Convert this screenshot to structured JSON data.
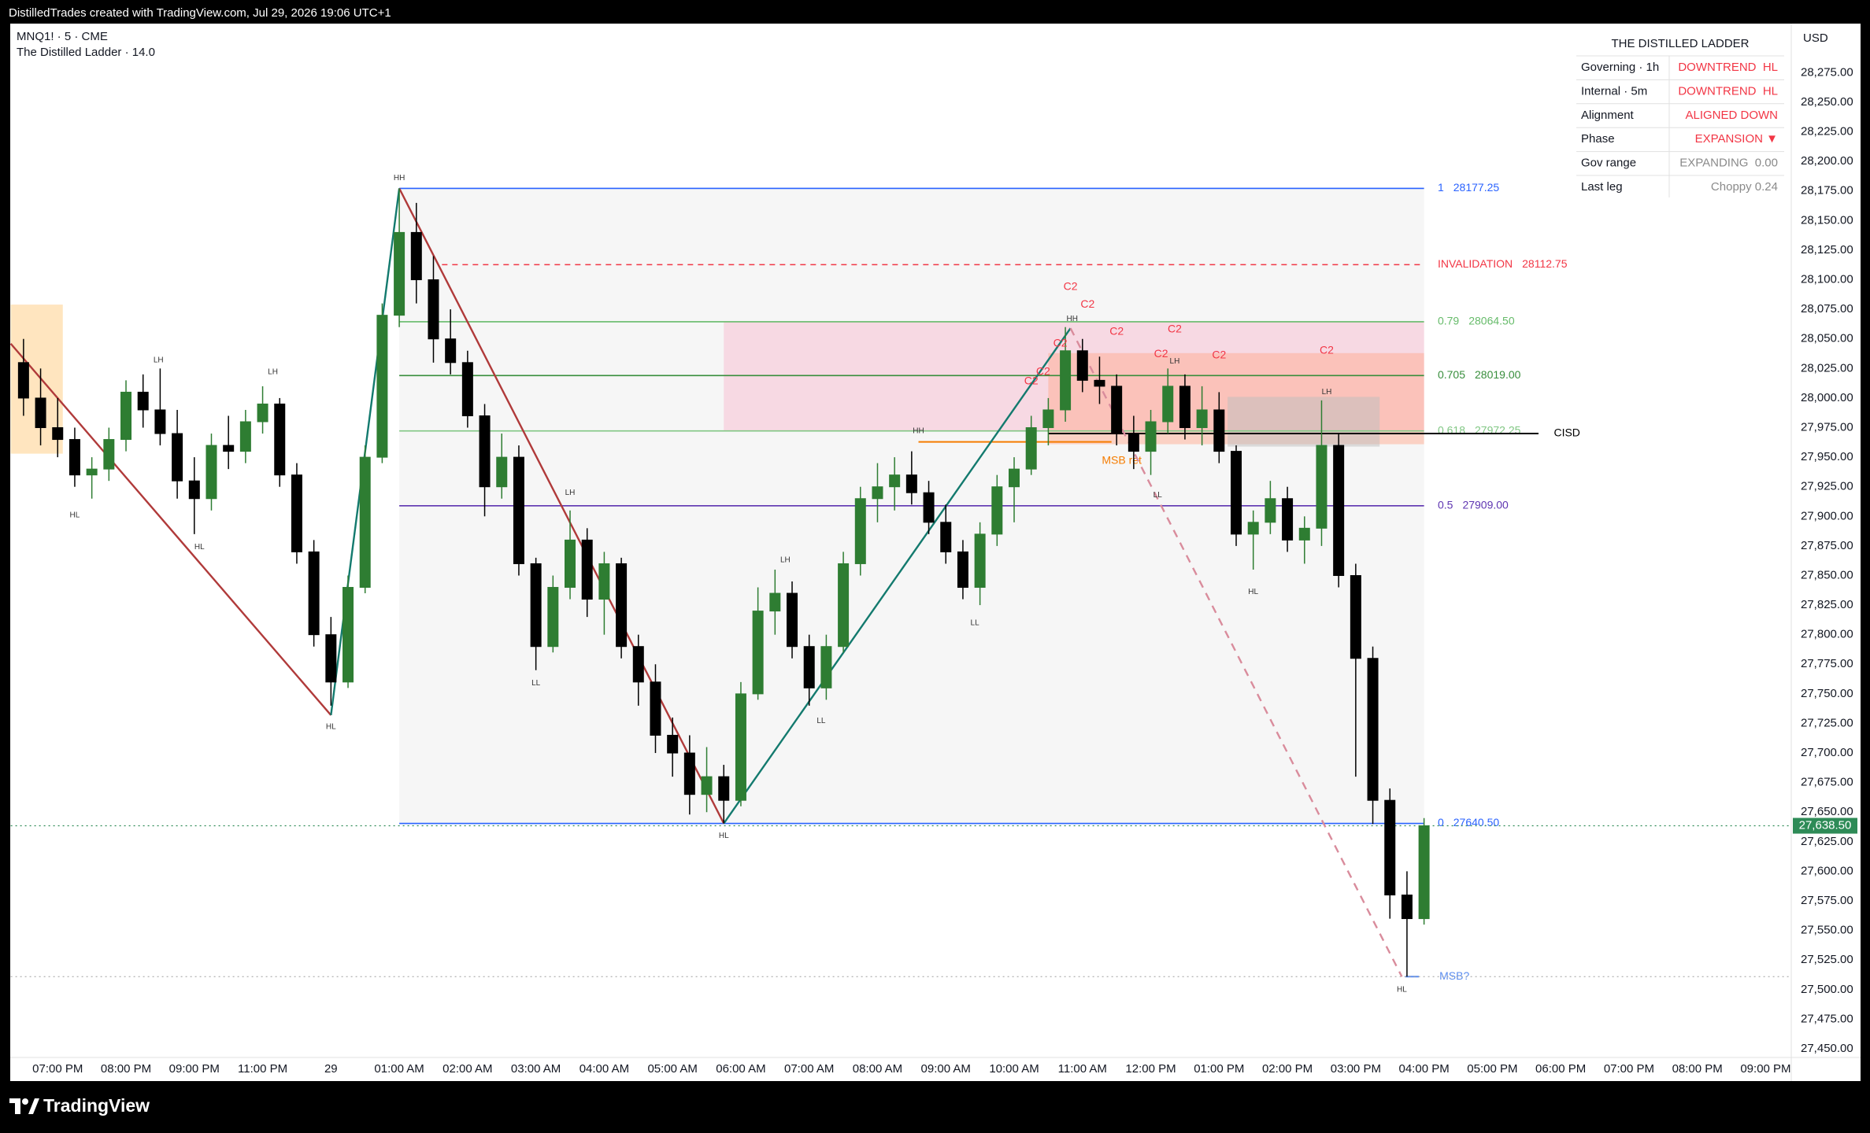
{
  "header": {
    "credit": "DistilledTrades created with TradingView.com, Jul 29, 2026 19:06 UTC+1",
    "symbol": "MNQ1! · 5 · CME",
    "indicator": "The Distilled Ladder · 14.0",
    "currency": "USD",
    "brand": "TradingView"
  },
  "table": {
    "title": "THE DISTILLED LADDER",
    "rows": [
      [
        "Governing · 1h",
        "DOWNTREND  HL"
      ],
      [
        "Internal · 5m",
        "DOWNTREND  HL"
      ],
      [
        "Alignment",
        "ALIGNED DOWN"
      ],
      [
        "Phase",
        "EXPANSION ▼"
      ],
      [
        "Gov range",
        "EXPANDING  0.00"
      ],
      [
        "Last leg",
        "Choppy 0.24"
      ]
    ],
    "value_colors": [
      "#f23645",
      "#f23645",
      "#f23645",
      "#f23645",
      "#8a8a8a",
      "#8a8a8a"
    ]
  },
  "chart_data": {
    "type": "candlestick",
    "up_color": "#2e7d32",
    "down_color": "#000000",
    "xlim": [
      1.25,
      105.5
    ],
    "ylim": [
      27443,
      28316.5
    ],
    "grid": false,
    "xticks": [
      {
        "value": 4,
        "label": "07:00 PM"
      },
      {
        "value": 8,
        "label": "08:00 PM"
      },
      {
        "value": 12,
        "label": "09:00 PM"
      },
      {
        "value": 16,
        "label": "11:00 PM"
      },
      {
        "value": 20,
        "label": "29"
      },
      {
        "value": 24,
        "label": "01:00 AM"
      },
      {
        "value": 28,
        "label": "02:00 AM"
      },
      {
        "value": 32,
        "label": "03:00 AM"
      },
      {
        "value": 36,
        "label": "04:00 AM"
      },
      {
        "value": 40,
        "label": "05:00 AM"
      },
      {
        "value": 44,
        "label": "06:00 AM"
      },
      {
        "value": 48,
        "label": "07:00 AM"
      },
      {
        "value": 52,
        "label": "08:00 AM"
      },
      {
        "value": 56,
        "label": "09:00 AM"
      },
      {
        "value": 60,
        "label": "10:00 AM"
      },
      {
        "value": 64,
        "label": "11:00 AM"
      },
      {
        "value": 68,
        "label": "12:00 PM"
      },
      {
        "value": 72,
        "label": "01:00 PM"
      },
      {
        "value": 76,
        "label": "02:00 PM"
      },
      {
        "value": 80,
        "label": "03:00 PM"
      },
      {
        "value": 84,
        "label": "04:00 PM"
      },
      {
        "value": 88,
        "label": "05:00 PM"
      },
      {
        "value": 92,
        "label": "06:00 PM"
      },
      {
        "value": 96,
        "label": "07:00 PM"
      },
      {
        "value": 100,
        "label": "08:00 PM"
      },
      {
        "value": 104,
        "label": "09:00 PM"
      }
    ],
    "yticks": [
      {
        "value": 27450,
        "label": "27,450.00"
      },
      {
        "value": 27475,
        "label": "27,475.00"
      },
      {
        "value": 27500,
        "label": "27,500.00"
      },
      {
        "value": 27525,
        "label": "27,525.00"
      },
      {
        "value": 27550,
        "label": "27,550.00"
      },
      {
        "value": 27575,
        "label": "27,575.00"
      },
      {
        "value": 27600,
        "label": "27,600.00"
      },
      {
        "value": 27625,
        "label": "27,625.00"
      },
      {
        "value": 27650,
        "label": "27,650.00"
      },
      {
        "value": 27675,
        "label": "27,675.00"
      },
      {
        "value": 27700,
        "label": "27,700.00"
      },
      {
        "value": 27725,
        "label": "27,725.00"
      },
      {
        "value": 27750,
        "label": "27,750.00"
      },
      {
        "value": 27775,
        "label": "27,775.00"
      },
      {
        "value": 27800,
        "label": "27,800.00"
      },
      {
        "value": 27825,
        "label": "27,825.00"
      },
      {
        "value": 27850,
        "label": "27,850.00"
      },
      {
        "value": 27875,
        "label": "27,875.00"
      },
      {
        "value": 27900,
        "label": "27,900.00"
      },
      {
        "value": 27925,
        "label": "27,925.00"
      },
      {
        "value": 27950,
        "label": "27,950.00"
      },
      {
        "value": 27975,
        "label": "27,975.00"
      },
      {
        "value": 28000,
        "label": "28,000.00"
      },
      {
        "value": 28025,
        "label": "28,025.00"
      },
      {
        "value": 28050,
        "label": "28,050.00"
      },
      {
        "value": 28075,
        "label": "28,075.00"
      },
      {
        "value": 28100,
        "label": "28,100.00"
      },
      {
        "value": 28125,
        "label": "28,125.00"
      },
      {
        "value": 28150,
        "label": "28,150.00"
      },
      {
        "value": 28175,
        "label": "28,175.00"
      },
      {
        "value": 28200,
        "label": "28,200.00"
      },
      {
        "value": 28225,
        "label": "28,225.00"
      },
      {
        "value": 28250,
        "label": "28,250.00"
      },
      {
        "value": 28275,
        "label": "28,275.00"
      }
    ],
    "x": [
      2,
      3,
      4,
      5,
      6,
      7,
      8,
      9,
      10,
      11,
      12,
      13,
      14,
      15,
      16,
      17,
      18,
      19,
      20,
      21,
      22,
      23,
      24,
      25,
      26,
      27,
      28,
      29,
      30,
      31,
      32,
      33,
      34,
      35,
      36,
      37,
      38,
      39,
      40,
      41,
      42,
      43,
      44,
      45,
      46,
      47,
      48,
      49,
      50,
      51,
      52,
      53,
      54,
      55,
      56,
      57,
      58,
      59,
      60,
      61,
      62,
      63,
      64,
      65,
      66,
      67,
      68,
      69,
      70,
      71,
      72,
      73,
      74,
      75,
      76,
      77,
      78,
      79,
      80,
      81,
      82,
      83,
      84
    ],
    "open": [
      28030,
      28000,
      27975,
      27965,
      27935,
      27940,
      27965,
      28005,
      27990,
      27970,
      27930,
      27915,
      27960,
      27955,
      27980,
      27995,
      27935,
      27870,
      27800,
      27760,
      27840,
      27950,
      28070,
      28140,
      28100,
      28050,
      28030,
      27985,
      27925,
      27950,
      27860,
      27790,
      27840,
      27880,
      27830,
      27860,
      27790,
      27760,
      27715,
      27700,
      27665,
      27680,
      27660,
      27750,
      27820,
      27835,
      27790,
      27755,
      27790,
      27860,
      27915,
      27925,
      27935,
      27920,
      27895,
      27870,
      27840,
      27885,
      27925,
      27940,
      27975,
      27990,
      28040,
      28015,
      28010,
      27970,
      27955,
      27980,
      28010,
      27975,
      27990,
      27955,
      27885,
      27895,
      27915,
      27880,
      27890,
      27960,
      27850,
      27780,
      27660,
      27580,
      27560
    ],
    "high": [
      28050,
      28025,
      28000,
      27975,
      27950,
      27975,
      28015,
      28020,
      28025,
      27990,
      27950,
      27970,
      27985,
      27990,
      28010,
      28000,
      27945,
      27880,
      27815,
      27850,
      27960,
      28080,
      28177.25,
      28165,
      28120,
      28075,
      28040,
      27995,
      27970,
      27960,
      27865,
      27850,
      27905,
      27890,
      27870,
      27865,
      27800,
      27775,
      27730,
      27715,
      27705,
      27690,
      27760,
      27840,
      27855,
      27845,
      27800,
      27800,
      27870,
      27925,
      27945,
      27950,
      27955,
      27930,
      27910,
      27880,
      27895,
      27935,
      27950,
      27985,
      28000,
      28060,
      28050,
      28035,
      28020,
      27985,
      27990,
      28025,
      28020,
      28010,
      28005,
      27960,
      27905,
      27930,
      27925,
      27900,
      27998,
      27970,
      27860,
      27790,
      27670,
      27600,
      27645
    ],
    "low": [
      27985,
      27960,
      27950,
      27925,
      27915,
      27930,
      27955,
      27975,
      27960,
      27915,
      27885,
      27905,
      27940,
      27945,
      27970,
      27925,
      27860,
      27790,
      27740,
      27755,
      27835,
      27945,
      28060,
      28080,
      28030,
      28020,
      27975,
      27900,
      27915,
      27850,
      27770,
      27785,
      27830,
      27815,
      27800,
      27780,
      27740,
      27700,
      27680,
      27648,
      27650,
      27640.5,
      27655,
      27745,
      27800,
      27780,
      27740,
      27745,
      27785,
      27850,
      27895,
      27905,
      27910,
      27885,
      27860,
      27830,
      27825,
      27875,
      27895,
      27935,
      27960,
      27980,
      28005,
      27995,
      27960,
      27940,
      27935,
      27970,
      27965,
      27960,
      27945,
      27875,
      27855,
      27885,
      27870,
      27860,
      27875,
      27840,
      27680,
      27640,
      27560,
      27511,
      27555
    ],
    "close": [
      28000,
      27975,
      27965,
      27935,
      27940,
      27965,
      28005,
      27990,
      27970,
      27930,
      27915,
      27960,
      27955,
      27980,
      27995,
      27935,
      27870,
      27800,
      27760,
      27840,
      27950,
      28070,
      28140,
      28100,
      28050,
      28030,
      27985,
      27925,
      27950,
      27860,
      27790,
      27840,
      27880,
      27830,
      27860,
      27790,
      27760,
      27715,
      27700,
      27665,
      27680,
      27660,
      27750,
      27820,
      27835,
      27790,
      27755,
      27790,
      27860,
      27915,
      27925,
      27935,
      27920,
      27895,
      27870,
      27840,
      27885,
      27925,
      27940,
      27975,
      27990,
      28040,
      28015,
      28010,
      27970,
      27955,
      27980,
      28010,
      27975,
      27990,
      27955,
      27885,
      27895,
      27915,
      27880,
      27890,
      27960,
      27850,
      27780,
      27660,
      27580,
      27560,
      27638.5
    ],
    "last_price": {
      "value": 27638.5,
      "label": "27,638.50",
      "color": "#2e8b57"
    },
    "zones": [
      {
        "x": [
          24,
          84
        ],
        "y": [
          27640.5,
          28177.25
        ],
        "color": "#f2f2f2"
      },
      {
        "x": [
          1.25,
          4.3
        ],
        "y": [
          27953,
          28079
        ],
        "color": "#ffcc80"
      },
      {
        "x": [
          43,
          84
        ],
        "y": [
          27972.25,
          28064.5
        ],
        "color": "#f8bbd0"
      },
      {
        "x": [
          62,
          84
        ],
        "y": [
          27961,
          28038
        ],
        "color": "#ffab91"
      },
      {
        "x": [
          72.5,
          81.4
        ],
        "y": [
          27959,
          28001
        ],
        "color": "#bdbdbd"
      }
    ],
    "levels": [
      {
        "name": "1",
        "price": 28177.25,
        "color": "#2962ff",
        "x": [
          24,
          84
        ],
        "dashed": false
      },
      {
        "name": "INVALIDATION",
        "price": 28112.75,
        "color": "#f23645",
        "x": [
          26.5,
          84
        ],
        "dashed": true
      },
      {
        "name": "0.79",
        "price": 28064.5,
        "price_label": "28064.50",
        "color": "#66bb6a",
        "x": [
          24,
          84
        ],
        "dashed": false
      },
      {
        "name": "0.705",
        "price": 28019,
        "price_label": "28019.00",
        "color": "#388e3c",
        "x": [
          24,
          84
        ],
        "dashed": false
      },
      {
        "name": "0.618",
        "price": 27972.25,
        "color": "#81c784",
        "x": [
          24,
          84
        ],
        "dashed": false
      },
      {
        "name": "0.5",
        "price": 27909,
        "price_label": "27909.00",
        "color": "#5e35b1",
        "x": [
          24,
          84
        ],
        "dashed": false
      },
      {
        "name": "0",
        "price": 27640.5,
        "price_label": "27640.50",
        "color": "#2962ff",
        "x": [
          24,
          84
        ],
        "dashed": false
      }
    ],
    "level_label_x": 84.8,
    "zigzag": [
      {
        "x": [
          1.25,
          20
        ],
        "y": [
          28046,
          27732
        ],
        "color": "#b03a3a",
        "dashed": false
      },
      {
        "x": [
          20,
          24
        ],
        "y": [
          27732,
          28177.25
        ],
        "color": "#137a6e",
        "dashed": false
      },
      {
        "x": [
          24,
          43
        ],
        "y": [
          28177.25,
          27640.5
        ],
        "color": "#b03a3a",
        "dashed": false
      },
      {
        "x": [
          43,
          63.3
        ],
        "y": [
          27640.5,
          28059
        ],
        "color": "#137a6e",
        "dashed": false
      },
      {
        "x": [
          63.3,
          82.7
        ],
        "y": [
          28059,
          27511
        ],
        "color": "#d98c9c",
        "dashed": true
      }
    ],
    "markers": [
      {
        "text": "MSB ret",
        "price": 27963,
        "x": [
          54.4,
          65.7
        ],
        "label_x": 66.3,
        "label_price": 27947,
        "color": "#f57c00"
      },
      {
        "text": "CISD",
        "price": 27970,
        "x": [
          62,
          90.7
        ],
        "label_x": 91.6,
        "label_price": 27970,
        "color": "#000000"
      },
      {
        "text": "MSB?",
        "price": 27511,
        "x": [
          82.9,
          83.7
        ],
        "label_x": 84.9,
        "label_price": 27511,
        "color": "#5b8def"
      }
    ],
    "swing_labels": [
      {
        "text": "HL",
        "x": 5.0,
        "y": 27901
      },
      {
        "text": "LH",
        "x": 9.9,
        "y": 28032
      },
      {
        "text": "HL",
        "x": 12.3,
        "y": 27874
      },
      {
        "text": "LH",
        "x": 16.6,
        "y": 28022
      },
      {
        "text": "HL",
        "x": 20,
        "y": 27722
      },
      {
        "text": "HH",
        "x": 24,
        "y": 28186
      },
      {
        "text": "LL",
        "x": 32,
        "y": 27759
      },
      {
        "text": "LH",
        "x": 34,
        "y": 27920
      },
      {
        "text": "HL",
        "x": 43,
        "y": 27630
      },
      {
        "text": "LH",
        "x": 46.6,
        "y": 27863
      },
      {
        "text": "LL",
        "x": 48.7,
        "y": 27727
      },
      {
        "text": "HH",
        "x": 54.4,
        "y": 27972
      },
      {
        "text": "LL",
        "x": 57.7,
        "y": 27810
      },
      {
        "text": "HH",
        "x": 63.4,
        "y": 28067
      },
      {
        "text": "LL",
        "x": 68.4,
        "y": 27918
      },
      {
        "text": "LH",
        "x": 69.4,
        "y": 28031
      },
      {
        "text": "HL",
        "x": 74,
        "y": 27836
      },
      {
        "text": "LH",
        "x": 78.3,
        "y": 28005
      },
      {
        "text": "HL",
        "x": 82.7,
        "y": 27500
      }
    ],
    "c2_labels": [
      {
        "text": "C2",
        "x": 63.3,
        "y": 28094
      },
      {
        "text": "C2",
        "x": 64.3,
        "y": 28079
      },
      {
        "text": "C2",
        "x": 66.0,
        "y": 28056
      },
      {
        "text": "C2",
        "x": 69.4,
        "y": 28058
      },
      {
        "text": "C2",
        "x": 68.6,
        "y": 28037
      },
      {
        "text": "C2",
        "x": 72.0,
        "y": 28036
      },
      {
        "text": "C2",
        "x": 78.3,
        "y": 28040
      },
      {
        "text": "C2",
        "x": 62.7,
        "y": 28046
      },
      {
        "text": "C2",
        "x": 61.7,
        "y": 28022
      },
      {
        "text": "C2",
        "x": 61.0,
        "y": 28014
      }
    ],
    "c2_color": "#f23645"
  }
}
